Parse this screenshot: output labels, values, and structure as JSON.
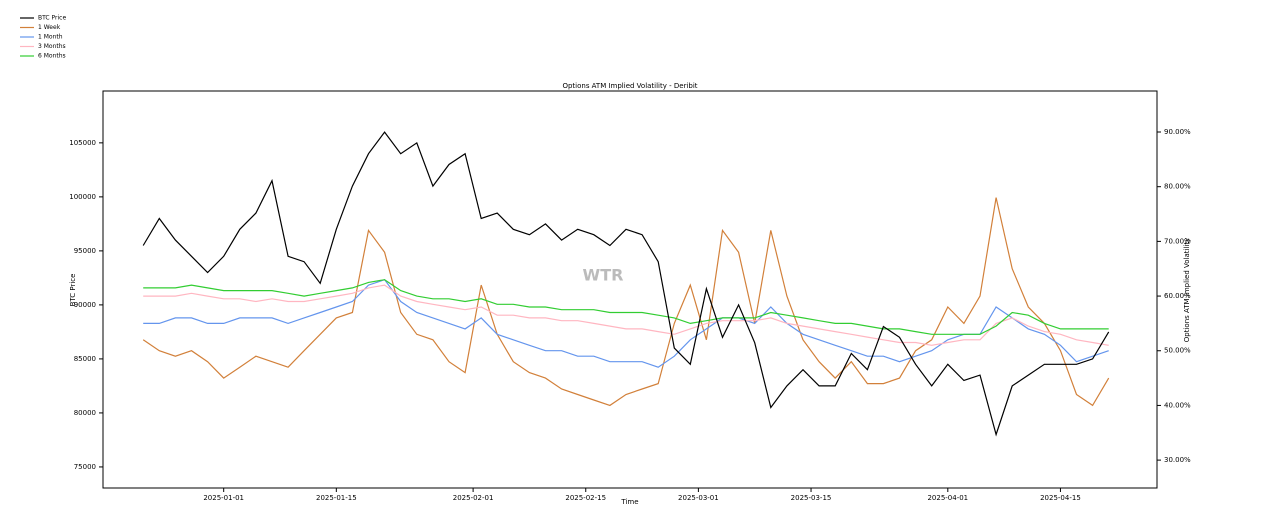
{
  "chart_data": {
    "type": "line",
    "title": "Options ATM Implied Volatility - Deribit",
    "xlabel": "Time",
    "ylabel": "BTC Price",
    "y2label": "Options ATM Implied Volatility",
    "watermark": "WTR",
    "legend": "upper left",
    "grid": false,
    "x": [
      "2024-12-22",
      "2024-12-24",
      "2024-12-26",
      "2024-12-28",
      "2024-12-30",
      "2025-01-01",
      "2025-01-03",
      "2025-01-05",
      "2025-01-07",
      "2025-01-09",
      "2025-01-11",
      "2025-01-13",
      "2025-01-15",
      "2025-01-17",
      "2025-01-19",
      "2025-01-21",
      "2025-01-23",
      "2025-01-25",
      "2025-01-27",
      "2025-01-29",
      "2025-01-31",
      "2025-02-02",
      "2025-02-04",
      "2025-02-06",
      "2025-02-08",
      "2025-02-10",
      "2025-02-12",
      "2025-02-14",
      "2025-02-16",
      "2025-02-18",
      "2025-02-20",
      "2025-02-22",
      "2025-02-24",
      "2025-02-26",
      "2025-02-28",
      "2025-03-02",
      "2025-03-04",
      "2025-03-06",
      "2025-03-08",
      "2025-03-10",
      "2025-03-12",
      "2025-03-14",
      "2025-03-16",
      "2025-03-18",
      "2025-03-20",
      "2025-03-22",
      "2025-03-24",
      "2025-03-26",
      "2025-03-28",
      "2025-03-30",
      "2025-04-01",
      "2025-04-03",
      "2025-04-05",
      "2025-04-07",
      "2025-04-09",
      "2025-04-11",
      "2025-04-13",
      "2025-04-15",
      "2025-04-17",
      "2025-04-19",
      "2025-04-21"
    ],
    "xlim": [
      "2024-12-17",
      "2025-04-27"
    ],
    "xticks": [
      "2025-01-01",
      "2025-01-15",
      "2025-02-01",
      "2025-02-15",
      "2025-03-01",
      "2025-03-15",
      "2025-04-01",
      "2025-04-15"
    ],
    "ylim": [
      73050,
      109800
    ],
    "yticks": [
      75000,
      80000,
      85000,
      90000,
      95000,
      100000,
      105000
    ],
    "y2lim": [
      24.9,
      97.5
    ],
    "y2ticks": [
      {
        "value": 30,
        "label": "30.00%"
      },
      {
        "value": 40,
        "label": "40.00%"
      },
      {
        "value": 50,
        "label": "50.00%"
      },
      {
        "value": 60,
        "label": "60.00%"
      },
      {
        "value": 70,
        "label": "70.00%"
      },
      {
        "value": 80,
        "label": "80.00%"
      },
      {
        "value": 90,
        "label": "90.00%"
      }
    ],
    "series": [
      {
        "name": "BTC Price",
        "color": "#000000",
        "axis": "y",
        "values": [
          95500,
          98000,
          96000,
          94500,
          93000,
          94500,
          97000,
          98500,
          101500,
          94500,
          94000,
          92000,
          97000,
          101000,
          104000,
          106000,
          104000,
          105000,
          101000,
          103000,
          104000,
          98000,
          98500,
          97000,
          96500,
          97500,
          96000,
          97000,
          96500,
          95500,
          97000,
          96500,
          94000,
          86000,
          84500,
          91500,
          87000,
          90000,
          86500,
          80500,
          82500,
          84000,
          82500,
          82500,
          85500,
          84000,
          88000,
          87000,
          84500,
          82500,
          84500,
          83000,
          83500,
          78000,
          82500,
          83500,
          84500,
          84500,
          84500,
          85000,
          87500
        ]
      },
      {
        "name": "1 Week",
        "color": "#d2803a",
        "axis": "y2",
        "values": [
          52,
          50,
          49,
          50,
          48,
          45,
          47,
          49,
          48,
          47,
          50,
          53,
          56,
          57,
          72,
          68,
          57,
          53,
          52,
          48,
          46,
          62,
          53,
          48,
          46,
          45,
          43,
          42,
          41,
          40,
          42,
          43,
          44,
          55,
          62,
          52,
          72,
          68,
          55,
          72,
          60,
          52,
          48,
          45,
          48,
          44,
          44,
          45,
          50,
          52,
          58,
          55,
          60,
          78,
          65,
          58,
          55,
          50,
          42,
          40,
          45
        ]
      },
      {
        "name": "1 Month",
        "color": "#6495ed",
        "axis": "y2",
        "values": [
          55,
          55,
          56,
          56,
          55,
          55,
          56,
          56,
          56,
          55,
          56,
          57,
          58,
          59,
          62,
          63,
          59,
          57,
          56,
          55,
          54,
          56,
          53,
          52,
          51,
          50,
          50,
          49,
          49,
          48,
          48,
          48,
          47,
          49,
          52,
          54,
          56,
          56,
          55,
          58,
          55,
          53,
          52,
          51,
          50,
          49,
          49,
          48,
          49,
          50,
          52,
          53,
          53,
          58,
          56,
          54,
          53,
          51,
          48,
          49,
          50
        ]
      },
      {
        "name": "3 Months",
        "color": "#ffb6c1",
        "axis": "y2",
        "values": [
          60,
          60,
          60,
          60.5,
          60,
          59.5,
          59.5,
          59,
          59.5,
          59,
          59,
          59.5,
          60,
          60.5,
          61.5,
          62,
          60,
          59,
          58.5,
          58,
          57.5,
          58,
          56.5,
          56.5,
          56,
          56,
          55.5,
          55.5,
          55,
          54.5,
          54,
          54,
          53.5,
          53,
          54,
          55,
          55.5,
          55.5,
          55.5,
          56,
          55,
          54.5,
          54,
          53.5,
          53,
          52.5,
          52,
          51.5,
          51.5,
          51,
          51.5,
          52,
          52,
          55,
          56,
          54.5,
          53.5,
          53,
          52,
          51.5,
          51
        ]
      },
      {
        "name": "6 Months",
        "color": "#32cd32",
        "axis": "y2",
        "values": [
          61.5,
          61.5,
          61.5,
          62,
          61.5,
          61,
          61,
          61,
          61,
          60.5,
          60,
          60.5,
          61,
          61.5,
          62.5,
          63,
          61,
          60,
          59.5,
          59.5,
          59,
          59.5,
          58.5,
          58.5,
          58,
          58,
          57.5,
          57.5,
          57.5,
          57,
          57,
          57,
          56.5,
          56,
          55,
          55.5,
          56,
          56,
          56,
          57,
          56.5,
          56,
          55.5,
          55,
          55,
          54.5,
          54,
          54,
          53.5,
          53,
          53,
          53,
          53,
          54.5,
          57,
          56.5,
          55,
          54,
          54,
          54,
          54
        ]
      }
    ]
  }
}
